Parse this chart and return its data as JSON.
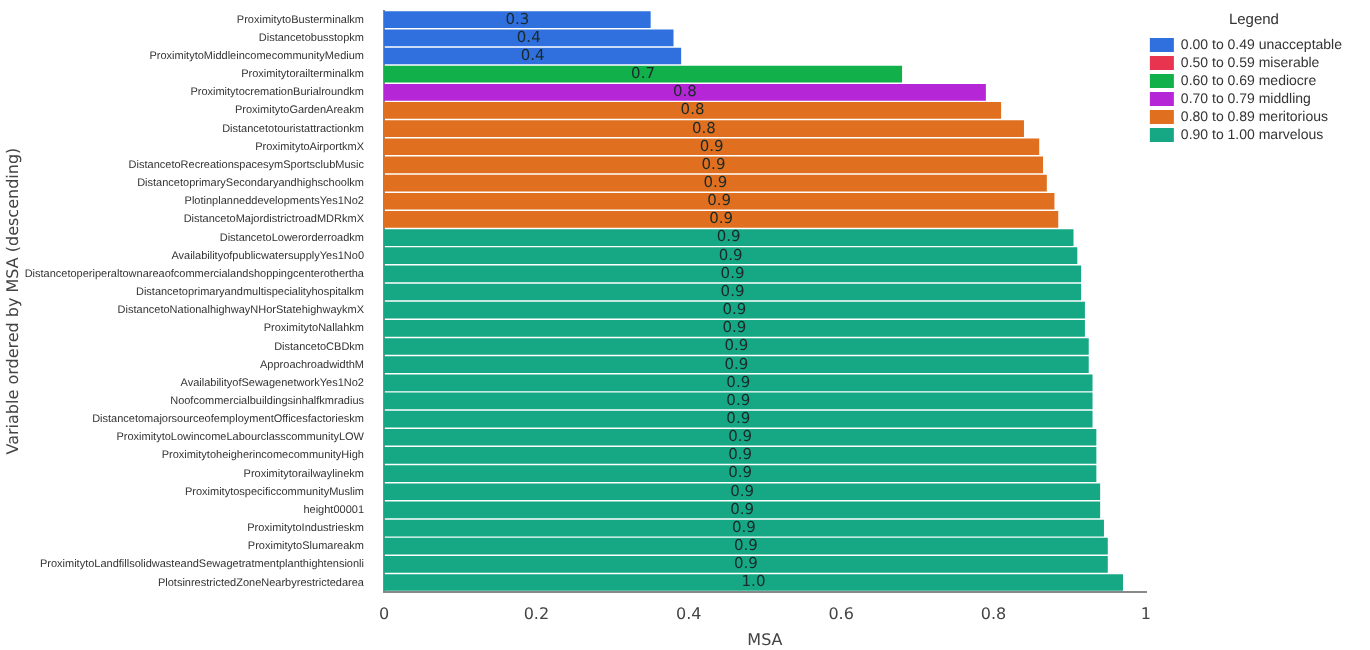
{
  "chart_data": {
    "type": "bar",
    "orientation": "horizontal",
    "xlabel": "MSA",
    "ylabel": "Variable ordered by MSA (descending)",
    "legend_title": "Legend",
    "legend": "right",
    "categories": [
      "ProximitytoBusterminalkm",
      "Distancetobusstopkm",
      "ProximitytoMiddleincomecommunityMedium",
      "Proximitytorailterminalkm",
      "ProximitytocremationBurialroundkm",
      "ProximitytoGardenAreakm",
      "Distancetotouristattractionkm",
      "ProximitytoAirportkmX",
      "DistancetoRecreationspacesymSportsclubMusic",
      "DistancetoprimarySecondaryandhighschoolkm",
      "PlotinplanneddevelopmentsYes1No2",
      "DistancetoMajordistrictroadMDRkmX",
      "DistancetoLowerorderroadkm",
      "AvailabilityofpublicwatersupplyYes1No0",
      "Distancetoperiperaltownareaofcommercialandshoppingcenterotherthа",
      "Distancetoprimaryandmultispecialityhospitalkm",
      "DistancetoNationalhighwayNHorStatehighwaykmX",
      "ProximitytoNallahkm",
      "DistancetoCBDkm",
      "ApproachroadwidthM",
      "AvailabilityofSewagenetworkYes1No2",
      "Noofcommercialbuildingsinhalfkmradius",
      "DistancetomajorsourceofemploymentOfficesfactorieskm",
      "ProximitytoLowincomeLabourclasscommunityLOW",
      "ProximitytoheigherincomecommunityHigh",
      "Proximitytorailwaylinekm",
      "ProximitytospecificcommunityMuslim",
      "height00001",
      "ProximitytoIndustrieskm",
      "ProximitytoSlumareakm",
      "ProximitytoLandfillsolidwasteandSewagetratmentplanthightensionli",
      "PlotsinrestrictedZoneNearbyrestrictedarea"
    ],
    "xlim": [
      0,
      1
    ],
    "xticks": [
      0,
      0.2,
      0.4,
      0.6,
      0.8,
      1.0
    ],
    "series": [
      {
        "name": "0.00 to 0.49 unacceptable",
        "color": "#2f6fde",
        "values": [
          0.35,
          0.38,
          0.39,
          null,
          null,
          null,
          null,
          null,
          null,
          null,
          null,
          null,
          null,
          null,
          null,
          null,
          null,
          null,
          null,
          null,
          null,
          null,
          null,
          null,
          null,
          null,
          null,
          null,
          null,
          null,
          null,
          null
        ],
        "value_labels": [
          "0.3",
          "0.4",
          "0.4",
          null,
          null,
          null,
          null,
          null,
          null,
          null,
          null,
          null,
          null,
          null,
          null,
          null,
          null,
          null,
          null,
          null,
          null,
          null,
          null,
          null,
          null,
          null,
          null,
          null,
          null,
          null,
          null,
          null
        ]
      },
      {
        "name": "0.50 to 0.59 miserable",
        "color": "#e8344e",
        "values": [
          null,
          null,
          null,
          null,
          null,
          null,
          null,
          null,
          null,
          null,
          null,
          null,
          null,
          null,
          null,
          null,
          null,
          null,
          null,
          null,
          null,
          null,
          null,
          null,
          null,
          null,
          null,
          null,
          null,
          null,
          null,
          null
        ]
      },
      {
        "name": "0.60 to 0.69 mediocre",
        "color": "#12b04a",
        "values": [
          null,
          null,
          null,
          0.68,
          null,
          null,
          null,
          null,
          null,
          null,
          null,
          null,
          null,
          null,
          null,
          null,
          null,
          null,
          null,
          null,
          null,
          null,
          null,
          null,
          null,
          null,
          null,
          null,
          null,
          null,
          null,
          null
        ],
        "value_labels": [
          null,
          null,
          null,
          "0.7",
          null,
          null,
          null,
          null,
          null,
          null,
          null,
          null,
          null,
          null,
          null,
          null,
          null,
          null,
          null,
          null,
          null,
          null,
          null,
          null,
          null,
          null,
          null,
          null,
          null,
          null,
          null,
          null
        ]
      },
      {
        "name": "0.70 to 0.79 middling",
        "color": "#b526d6",
        "values": [
          null,
          null,
          null,
          null,
          0.79,
          null,
          null,
          null,
          null,
          null,
          null,
          null,
          null,
          null,
          null,
          null,
          null,
          null,
          null,
          null,
          null,
          null,
          null,
          null,
          null,
          null,
          null,
          null,
          null,
          null,
          null,
          null
        ],
        "value_labels": [
          null,
          null,
          null,
          null,
          "0.8",
          null,
          null,
          null,
          null,
          null,
          null,
          null,
          null,
          null,
          null,
          null,
          null,
          null,
          null,
          null,
          null,
          null,
          null,
          null,
          null,
          null,
          null,
          null,
          null,
          null,
          null,
          null
        ]
      },
      {
        "name": "0.80 to 0.89 meritorious",
        "color": "#e0701f",
        "values": [
          null,
          null,
          null,
          null,
          null,
          0.81,
          0.84,
          0.86,
          0.865,
          0.87,
          0.88,
          0.885,
          null,
          null,
          null,
          null,
          null,
          null,
          null,
          null,
          null,
          null,
          null,
          null,
          null,
          null,
          null,
          null,
          null,
          null,
          null,
          null
        ],
        "value_labels": [
          null,
          null,
          null,
          null,
          null,
          "0.8",
          "0.8",
          "0.9",
          "0.9",
          "0.9",
          "0.9",
          "0.9",
          null,
          null,
          null,
          null,
          null,
          null,
          null,
          null,
          null,
          null,
          null,
          null,
          null,
          null,
          null,
          null,
          null,
          null,
          null,
          null
        ]
      },
      {
        "name": "0.90 to 1.00 marvelous",
        "color": "#16a884",
        "values": [
          null,
          null,
          null,
          null,
          null,
          null,
          null,
          null,
          null,
          null,
          null,
          null,
          0.905,
          0.91,
          0.915,
          0.915,
          0.92,
          0.92,
          0.925,
          0.925,
          0.93,
          0.93,
          0.93,
          0.935,
          0.935,
          0.935,
          0.94,
          0.94,
          0.945,
          0.95,
          0.95,
          0.97
        ],
        "value_labels": [
          null,
          null,
          null,
          null,
          null,
          null,
          null,
          null,
          null,
          null,
          null,
          null,
          "0.9",
          "0.9",
          "0.9",
          "0.9",
          "0.9",
          "0.9",
          "0.9",
          "0.9",
          "0.9",
          "0.9",
          "0.9",
          "0.9",
          "0.9",
          "0.9",
          "0.9",
          "0.9",
          "0.9",
          "0.9",
          "0.9",
          "1.0"
        ]
      }
    ]
  }
}
